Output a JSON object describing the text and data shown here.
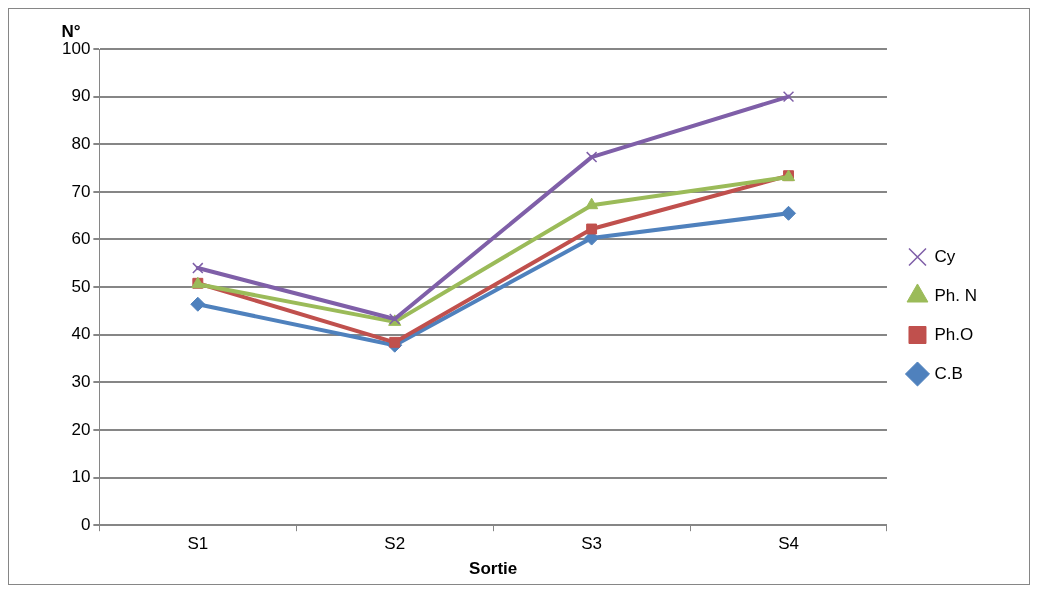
{
  "chart_data": {
    "type": "line",
    "ylabel": "N°",
    "xlabel": "Sortie",
    "categories": [
      "S1",
      "S2",
      "S3",
      "S4"
    ],
    "series": [
      {
        "name": "Cy",
        "color": "#7f5fa8",
        "marker": "cross",
        "values": [
          54,
          43.3,
          77.3,
          90
        ]
      },
      {
        "name": "Ph. N",
        "color": "#9bbb59",
        "marker": "triangle",
        "values": [
          50.6,
          42.7,
          67.2,
          73.1
        ]
      },
      {
        "name": "Ph.O",
        "color": "#c0504d",
        "marker": "square",
        "values": [
          50.8,
          38.4,
          62.2,
          73.4
        ]
      },
      {
        "name": "C.B",
        "color": "#4f81bd",
        "marker": "diamond",
        "values": [
          46.4,
          37.8,
          60.3,
          65.5
        ]
      }
    ],
    "ylim": [
      0,
      100
    ],
    "yticks": [
      0,
      10,
      20,
      30,
      40,
      50,
      60,
      70,
      80,
      90,
      100
    ],
    "grid": "y",
    "legend": "right",
    "line_style": "solid"
  }
}
